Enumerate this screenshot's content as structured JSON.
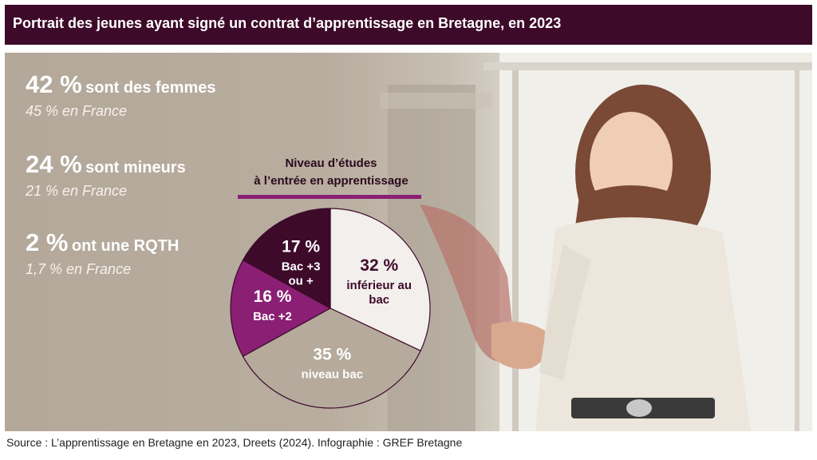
{
  "header": {
    "title": "Portrait des jeunes ayant signé un contrat d’apprentissage en Bretagne, en 2023"
  },
  "stats": [
    {
      "value": "42 %",
      "text": "sont des femmes",
      "sub": "45 % en France"
    },
    {
      "value": "24 %",
      "text": "sont mineurs",
      "sub": "21 % en France"
    },
    {
      "value": "2 %",
      "text": "ont une RQTH",
      "sub": "1,7 % en France"
    }
  ],
  "chart_data": {
    "type": "pie",
    "title_line1": "Niveau d’études",
    "title_line2": "à l’entrée en apprentissage",
    "slices": [
      {
        "label": "inférieur au bac",
        "value": 32,
        "display": "32 %",
        "color": "#f3efec",
        "text_color": "#3d0a2a"
      },
      {
        "label": "niveau bac",
        "value": 35,
        "display": "35 %",
        "color": "#b5aa9b",
        "text_color": "#ffffff"
      },
      {
        "label": "Bac +2",
        "value": 16,
        "display": "16 %",
        "color": "#8a1f74",
        "text_color": "#ffffff"
      },
      {
        "label": "Bac +3 ou +",
        "value": 17,
        "display": "17 %",
        "color": "#3d0a2a",
        "text_color": "#ffffff"
      }
    ]
  },
  "source": "Source : L’apprentissage en Bretagne en 2023, Dreets (2024). Infographie : GREF Bretagne",
  "colors": {
    "header_bg": "#3d0a2a",
    "accent": "#8a1f74",
    "panel_bg": "#b3a89a"
  }
}
